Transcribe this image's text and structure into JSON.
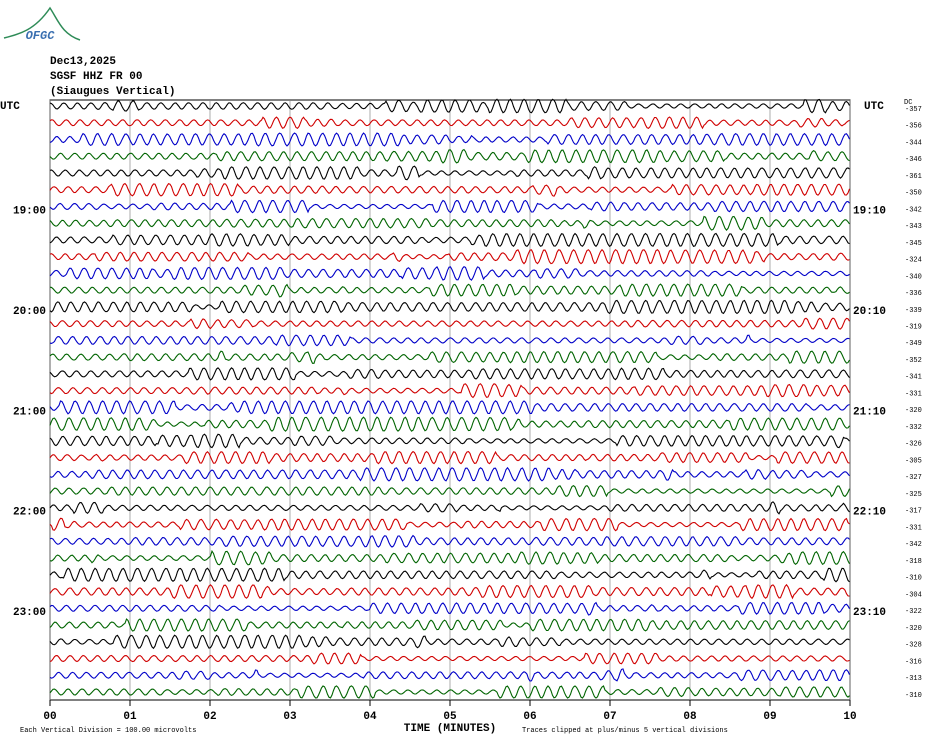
{
  "header": {
    "logo": "OFGC",
    "date": "Dec13,2025",
    "station": "SGSF HHZ FR 00",
    "location": "(Siaugues Vertical)"
  },
  "chart_data": {
    "type": "helicorder",
    "utc_left": "UTC",
    "utc_right": "UTC",
    "dc_label": "DC",
    "xlabel": "TIME (MINUTES)",
    "xlim": [
      0,
      10
    ],
    "xticks": [
      {
        "value": 0,
        "label": "00"
      },
      {
        "value": 1,
        "label": "01"
      },
      {
        "value": 2,
        "label": "02"
      },
      {
        "value": 3,
        "label": "03"
      },
      {
        "value": 4,
        "label": "04"
      },
      {
        "value": 5,
        "label": "05"
      },
      {
        "value": 6,
        "label": "06"
      },
      {
        "value": 7,
        "label": "07"
      },
      {
        "value": 8,
        "label": "08"
      },
      {
        "value": 9,
        "label": "09"
      },
      {
        "value": 10,
        "label": "10"
      }
    ],
    "trace_colors": [
      "#000000",
      "#d00000",
      "#0000c8",
      "#006400"
    ],
    "row_labels_left": [
      null,
      null,
      null,
      null,
      null,
      null,
      "19:00",
      null,
      null,
      null,
      null,
      null,
      "20:00",
      null,
      null,
      null,
      null,
      null,
      "21:00",
      null,
      null,
      null,
      null,
      null,
      "22:00",
      null,
      null,
      null,
      null,
      null,
      "23:00",
      null,
      null,
      null,
      null,
      null
    ],
    "row_labels_right": [
      null,
      null,
      null,
      null,
      null,
      null,
      "19:10",
      null,
      null,
      null,
      null,
      null,
      "20:10",
      null,
      null,
      null,
      null,
      null,
      "21:10",
      null,
      null,
      null,
      null,
      null,
      "22:10",
      null,
      null,
      null,
      null,
      null,
      "23:10",
      null,
      null,
      null,
      null,
      null
    ],
    "dc_offsets": [
      -357,
      -356,
      -344,
      -346,
      -361,
      -350,
      -342,
      -343,
      -345,
      -324,
      -340,
      -336,
      -339,
      -319,
      -349,
      -352,
      -341,
      -331,
      -320,
      -332,
      -326,
      -305,
      -327,
      -325,
      -317,
      -331,
      -342,
      -318,
      -310,
      -304,
      -322,
      -320,
      -328,
      -316,
      -313,
      -310
    ],
    "footnote_left": "Each Vertical Division =  100.00 microvolts",
    "footnote_right": "Traces clipped at plus/minus 5 vertical divisions"
  }
}
